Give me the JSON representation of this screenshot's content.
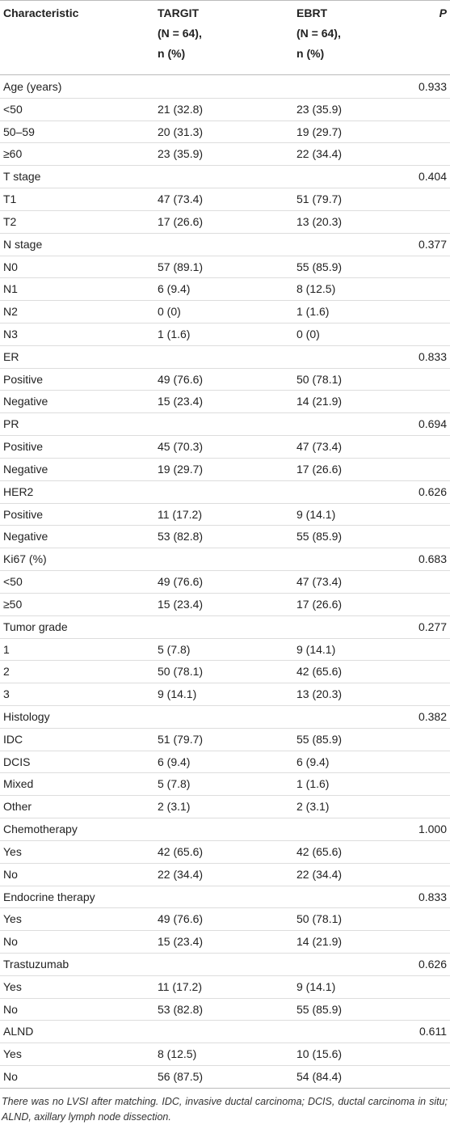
{
  "header": {
    "columns": [
      {
        "lines": [
          "Characteristic"
        ]
      },
      {
        "lines": [
          "TARGIT",
          "(N = 64),",
          "n (%)"
        ]
      },
      {
        "lines": [
          "EBRT",
          "(N = 64),",
          "n (%)"
        ]
      },
      {
        "lines": [
          "P"
        ]
      }
    ]
  },
  "table": {
    "rows": [
      [
        "Age (years)",
        null,
        null,
        "0.933"
      ],
      [
        "<50",
        "21 (32.8)",
        "23 (35.9)",
        null
      ],
      [
        "50–59",
        "20 (31.3)",
        "19 (29.7)",
        null
      ],
      [
        "≥60",
        "23 (35.9)",
        "22 (34.4)",
        null
      ],
      [
        "T stage",
        null,
        null,
        "0.404"
      ],
      [
        "T1",
        "47 (73.4)",
        "51 (79.7)",
        null
      ],
      [
        "T2",
        "17 (26.6)",
        "13 (20.3)",
        null
      ],
      [
        "N stage",
        null,
        null,
        "0.377"
      ],
      [
        "N0",
        "57 (89.1)",
        "55 (85.9)",
        null
      ],
      [
        "N1",
        "6 (9.4)",
        "8 (12.5)",
        null
      ],
      [
        "N2",
        "0 (0)",
        "1 (1.6)",
        null
      ],
      [
        "N3",
        "1 (1.6)",
        "0 (0)",
        null
      ],
      [
        "ER",
        null,
        null,
        "0.833"
      ],
      [
        "Positive",
        "49 (76.6)",
        "50 (78.1)",
        null
      ],
      [
        "Negative",
        "15 (23.4)",
        "14 (21.9)",
        null
      ],
      [
        "PR",
        null,
        null,
        "0.694"
      ],
      [
        "Positive",
        "45 (70.3)",
        "47 (73.4)",
        null
      ],
      [
        "Negative",
        "19 (29.7)",
        "17 (26.6)",
        null
      ],
      [
        "HER2",
        null,
        null,
        "0.626"
      ],
      [
        "Positive",
        "11 (17.2)",
        "9 (14.1)",
        null
      ],
      [
        "Negative",
        "53 (82.8)",
        "55 (85.9)",
        null
      ],
      [
        "Ki67 (%)",
        null,
        null,
        "0.683"
      ],
      [
        "<50",
        "49 (76.6)",
        "47 (73.4)",
        null
      ],
      [
        "≥50",
        "15 (23.4)",
        "17 (26.6)",
        null
      ],
      [
        "Tumor grade",
        null,
        null,
        "0.277"
      ],
      [
        "1",
        "5 (7.8)",
        "9 (14.1)",
        null
      ],
      [
        "2",
        "50 (78.1)",
        "42 (65.6)",
        null
      ],
      [
        "3",
        "9 (14.1)",
        "13 (20.3)",
        null
      ],
      [
        "Histology",
        null,
        null,
        "0.382"
      ],
      [
        "IDC",
        "51 (79.7)",
        "55 (85.9)",
        null
      ],
      [
        "DCIS",
        "6 (9.4)",
        "6 (9.4)",
        null
      ],
      [
        "Mixed",
        "5 (7.8)",
        "1 (1.6)",
        null
      ],
      [
        "Other",
        "2 (3.1)",
        "2 (3.1)",
        null
      ],
      [
        "Chemotherapy",
        null,
        null,
        "1.000"
      ],
      [
        "Yes",
        "42 (65.6)",
        "42 (65.6)",
        null
      ],
      [
        "No",
        "22 (34.4)",
        "22 (34.4)",
        null
      ],
      [
        "Endocrine therapy",
        null,
        null,
        "0.833"
      ],
      [
        "Yes",
        "49 (76.6)",
        "50 (78.1)",
        null
      ],
      [
        "No",
        "15 (23.4)",
        "14 (21.9)",
        null
      ],
      [
        "Trastuzumab",
        null,
        null,
        "0.626"
      ],
      [
        "Yes",
        "11 (17.2)",
        "9 (14.1)",
        null
      ],
      [
        "No",
        "53 (82.8)",
        "55 (85.9)",
        null
      ],
      [
        "ALND",
        null,
        null,
        "0.611"
      ],
      [
        "Yes",
        "8 (12.5)",
        "10 (15.6)",
        null
      ],
      [
        "No",
        "56 (87.5)",
        "54 (84.4)",
        null
      ]
    ]
  },
  "footnote": "There was no LVSI after matching. IDC, invasive ductal carcinoma; DCIS, ductal carcinoma in situ; ALND, axillary lymph node dissection."
}
